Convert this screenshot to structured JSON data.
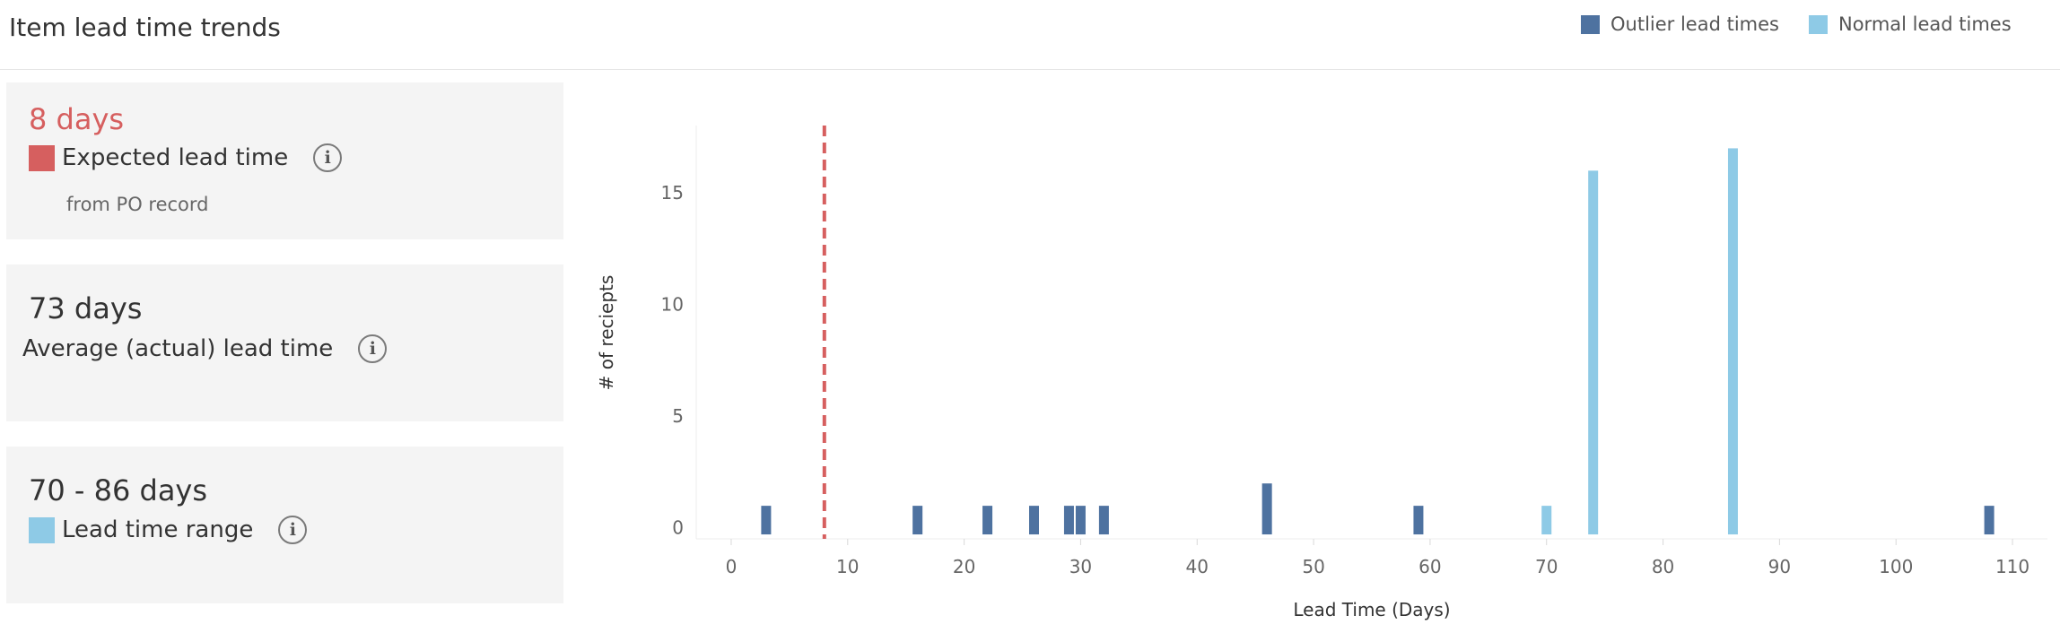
{
  "page": {
    "title": "Item lead time trends"
  },
  "colors": {
    "outlier": "#4e72a0",
    "normal": "#8ecae6",
    "expected": "#d65f5f",
    "range": "#8ecae6",
    "card_bg": "#f4f4f4"
  },
  "legend": [
    {
      "label": "Outlier lead times",
      "color": "#4e72a0"
    },
    {
      "label": "Normal lead times",
      "color": "#8ecae6"
    }
  ],
  "kpis": {
    "expected": {
      "value": "8 days",
      "label": "Expected lead time",
      "sublabel": "from PO record",
      "info": "i"
    },
    "average": {
      "value": "73 days",
      "label": "Average (actual) lead time",
      "info": "i"
    },
    "range": {
      "value": "70 - 86 days",
      "label": "Lead time range",
      "info": "i"
    }
  },
  "chart_data": {
    "type": "bar",
    "title": "",
    "xlabel": "Lead Time (Days)",
    "ylabel": "# of reciepts",
    "xlim": [
      -3,
      113
    ],
    "ylim": [
      -0.5,
      18
    ],
    "xticks": [
      0,
      10,
      20,
      30,
      40,
      50,
      60,
      70,
      80,
      90,
      100,
      110
    ],
    "yticks": [
      0,
      5,
      10,
      15
    ],
    "grid": false,
    "legend_position": "top-right",
    "series": [
      {
        "name": "Outlier lead times",
        "color": "#4e72a0",
        "x": [
          3,
          16,
          22,
          26,
          29,
          30,
          32,
          46,
          59,
          108
        ],
        "values": [
          1,
          1,
          1,
          1,
          1,
          1,
          1,
          2,
          1,
          1
        ]
      },
      {
        "name": "Normal lead times",
        "color": "#8ecae6",
        "x": [
          70,
          74,
          86
        ],
        "values": [
          1,
          16,
          17
        ]
      }
    ],
    "reference_lines": [
      {
        "label": "Expected lead time",
        "x": 8,
        "color": "#d65f5f",
        "style": "dashed"
      }
    ]
  }
}
